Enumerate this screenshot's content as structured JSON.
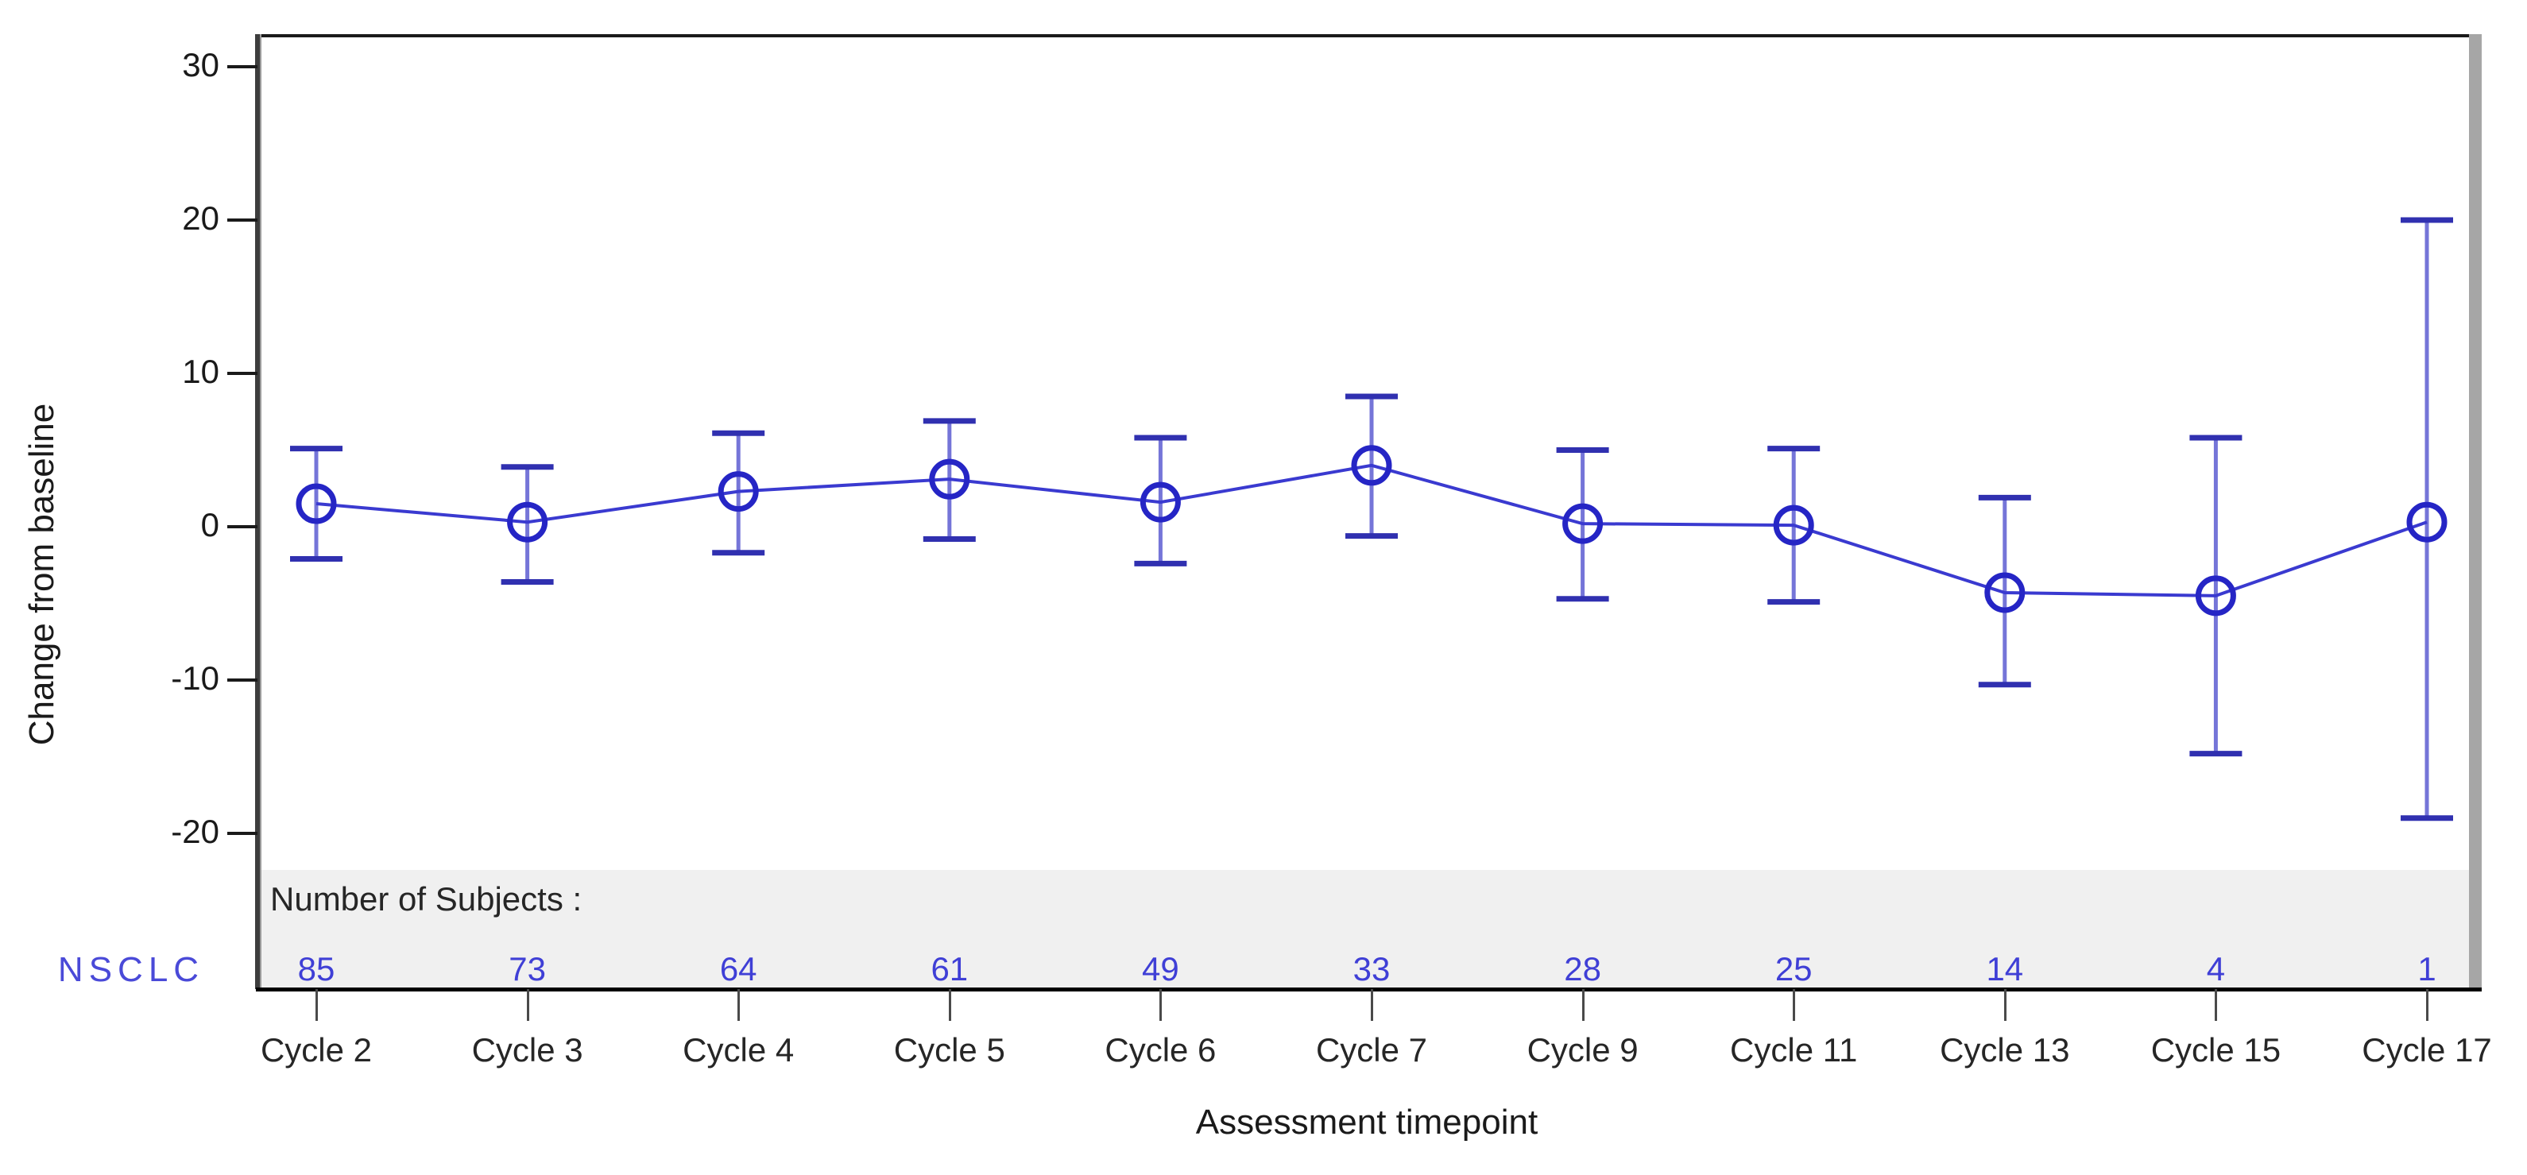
{
  "chart_data": {
    "type": "line",
    "title": "",
    "xlabel": "Assessment timepoint",
    "ylabel": "Change from baseline",
    "yticks": [
      30,
      20,
      10,
      0,
      -10,
      -20
    ],
    "ylim": [
      -22.5,
      32
    ],
    "grid": false,
    "legend_position": "none",
    "categories": [
      "Cycle 2",
      "Cycle 3",
      "Cycle 4",
      "Cycle 5",
      "Cycle 6",
      "Cycle 7",
      "Cycle 9",
      "Cycle 11",
      "Cycle 13",
      "Cycle 15",
      "Cycle 17"
    ],
    "annotations": {
      "subjects_header": "Number of Subjects :"
    },
    "series": [
      {
        "name": "NSCLC",
        "marker": "open-circle",
        "means": [
          1.5,
          0.3,
          2.3,
          3.1,
          1.6,
          4.0,
          0.2,
          0.1,
          -4.3,
          -4.5,
          0.3
        ],
        "ci_lower": [
          -2.1,
          -3.6,
          -1.7,
          -0.8,
          -2.4,
          -0.6,
          -4.7,
          -4.9,
          -10.3,
          -14.8,
          -19.0
        ],
        "ci_upper": [
          5.1,
          3.9,
          6.1,
          6.9,
          5.8,
          8.5,
          5.0,
          5.1,
          1.9,
          5.8,
          20.0
        ],
        "n_subjects": [
          85,
          73,
          64,
          61,
          49,
          33,
          28,
          25,
          14,
          4,
          1
        ]
      }
    ],
    "colors": {
      "line": "#3a3ad0",
      "marker_stroke": "#2525c5",
      "errorbar_stem": "#7575d8",
      "errorbar_cap": "#3030b0",
      "count_text": "#3f3fd6",
      "group_text": "#4a4ad8",
      "band_background": "#f0f0f0",
      "axis_text": "#1a1a1a"
    }
  }
}
